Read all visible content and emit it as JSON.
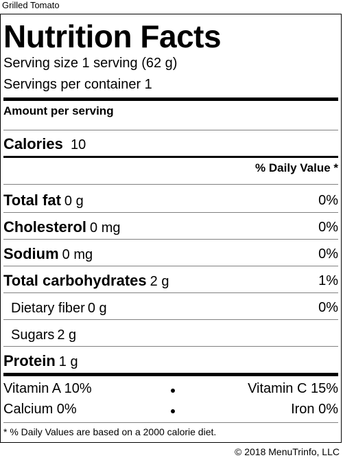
{
  "item_name": "Grilled Tomato",
  "label": {
    "title": "Nutrition Facts",
    "serving_size": "Serving size 1 serving (62 g)",
    "servings_per_container": "Servings per container 1",
    "amount_per_serving": "Amount per serving",
    "calories_label": "Calories",
    "calories_value": "10",
    "daily_value_header": "% Daily Value *",
    "nutrients": [
      {
        "name": "Total fat",
        "amount": "0 g",
        "dv": "0%"
      },
      {
        "name": "Cholesterol",
        "amount": "0 mg",
        "dv": "0%"
      },
      {
        "name": "Sodium",
        "amount": "0 mg",
        "dv": "0%"
      },
      {
        "name": "Total carbohydrates",
        "amount": "2 g",
        "dv": "1%"
      },
      {
        "name": "Dietary fiber",
        "amount": "0 g",
        "dv": "0%"
      },
      {
        "name": "Sugars",
        "amount": "2 g",
        "dv": ""
      },
      {
        "name": "Protein",
        "amount": "1 g",
        "dv": ""
      }
    ],
    "vitamins": [
      {
        "left": "Vitamin A 10%",
        "right": "Vitamin C 15%"
      },
      {
        "left": "Calcium 0%",
        "right": "Iron 0%"
      }
    ],
    "footnote": "* % Daily Values are based on a 2000 calorie diet."
  },
  "copyright": "© 2018 MenuTrinfo, LLC"
}
